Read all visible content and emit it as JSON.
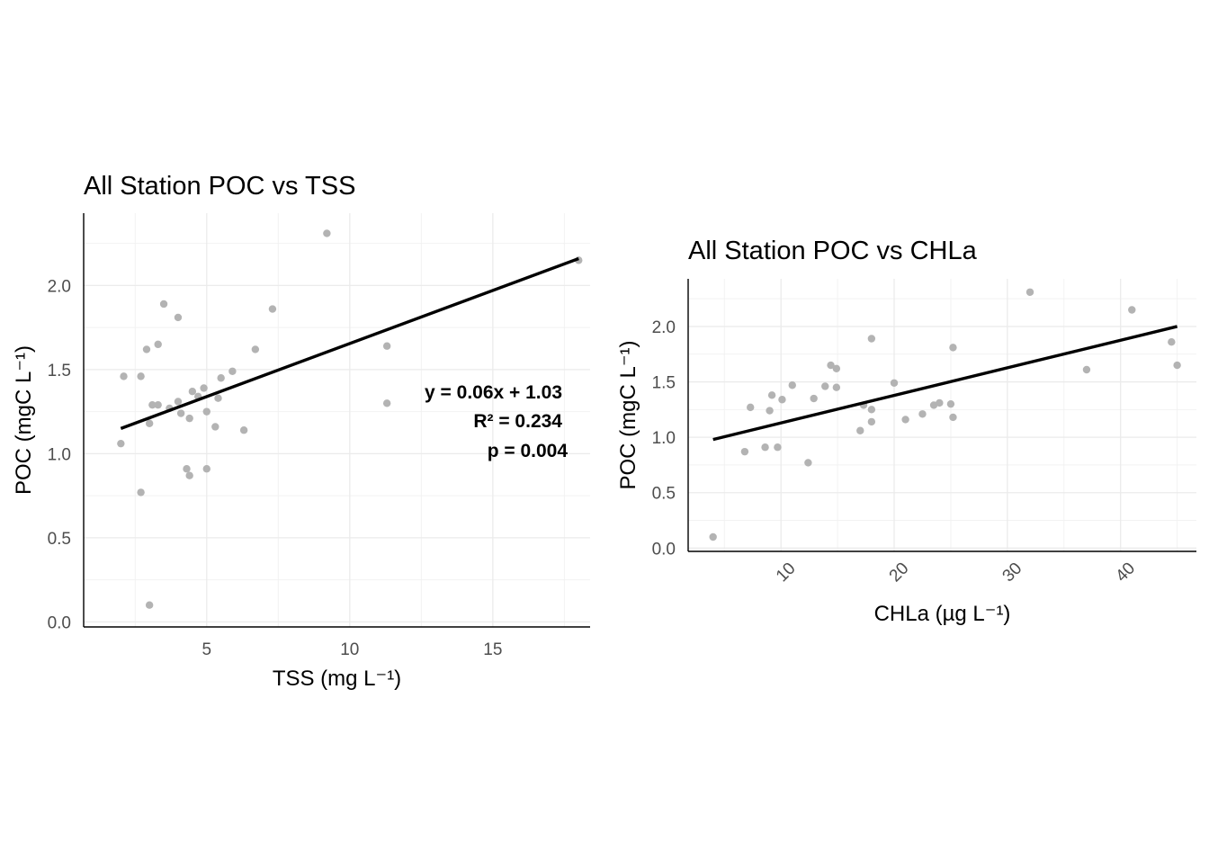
{
  "chart_data": [
    {
      "type": "scatter",
      "title": "All Station POC vs TSS",
      "xlabel": "TSS (mg L⁻¹)",
      "ylabel": "POC (mgC L⁻¹)",
      "xlim": [
        0.7,
        18.4
      ],
      "ylim": [
        -0.03,
        2.43
      ],
      "xticks": [
        5,
        10,
        15
      ],
      "yticks": [
        0.0,
        0.5,
        1.0,
        1.5,
        2.0
      ],
      "xtick_labels": [
        "5",
        "10",
        "15"
      ],
      "ytick_labels": [
        "0.0",
        "0.5",
        "1.0",
        "1.5",
        "2.0"
      ],
      "grid": true,
      "point_color": "#b3b3b3",
      "line_color": "#000000",
      "points": [
        {
          "x": 2.0,
          "y": 1.06
        },
        {
          "x": 2.1,
          "y": 1.46
        },
        {
          "x": 2.7,
          "y": 0.77
        },
        {
          "x": 2.7,
          "y": 1.46
        },
        {
          "x": 2.9,
          "y": 1.62
        },
        {
          "x": 3.0,
          "y": 1.18
        },
        {
          "x": 3.0,
          "y": 0.1
        },
        {
          "x": 3.1,
          "y": 1.29
        },
        {
          "x": 3.3,
          "y": 1.65
        },
        {
          "x": 3.3,
          "y": 1.29
        },
        {
          "x": 3.5,
          "y": 1.89
        },
        {
          "x": 3.7,
          "y": 1.27
        },
        {
          "x": 4.0,
          "y": 1.81
        },
        {
          "x": 4.0,
          "y": 1.31
        },
        {
          "x": 4.1,
          "y": 1.24
        },
        {
          "x": 4.3,
          "y": 0.91
        },
        {
          "x": 4.4,
          "y": 0.87
        },
        {
          "x": 4.4,
          "y": 1.21
        },
        {
          "x": 4.5,
          "y": 1.37
        },
        {
          "x": 4.7,
          "y": 1.34
        },
        {
          "x": 4.9,
          "y": 1.39
        },
        {
          "x": 5.0,
          "y": 1.25
        },
        {
          "x": 5.0,
          "y": 0.91
        },
        {
          "x": 5.3,
          "y": 1.16
        },
        {
          "x": 5.4,
          "y": 1.33
        },
        {
          "x": 5.5,
          "y": 1.45
        },
        {
          "x": 5.9,
          "y": 1.49
        },
        {
          "x": 6.3,
          "y": 1.14
        },
        {
          "x": 6.7,
          "y": 1.62
        },
        {
          "x": 7.3,
          "y": 1.86
        },
        {
          "x": 9.2,
          "y": 2.31
        },
        {
          "x": 11.3,
          "y": 1.64
        },
        {
          "x": 11.3,
          "y": 1.3
        },
        {
          "x": 18.0,
          "y": 2.15
        }
      ],
      "fit_line": {
        "x": [
          2.0,
          18.0
        ],
        "y": [
          1.15,
          2.16
        ]
      },
      "annotations": [
        "y = 0.06x + 1.03",
        "R² = 0.234",
        "p = 0.004"
      ]
    },
    {
      "type": "scatter",
      "title": "All Station POC vs CHLa",
      "xlabel": "CHLa (µg L⁻¹)",
      "ylabel": "POC (mgC L⁻¹)",
      "xlim": [
        1.8,
        46.7
      ],
      "ylim": [
        -0.03,
        2.43
      ],
      "xticks": [
        10,
        20,
        30,
        40
      ],
      "yticks": [
        0.0,
        0.5,
        1.0,
        1.5,
        2.0
      ],
      "xtick_labels": [
        "10",
        "20",
        "30",
        "40"
      ],
      "ytick_labels": [
        "0.0",
        "0.5",
        "1.0",
        "1.5",
        "2.0"
      ],
      "xtick_rotation": -45,
      "grid": true,
      "point_color": "#b3b3b3",
      "line_color": "#000000",
      "points": [
        {
          "x": 4.0,
          "y": 0.1
        },
        {
          "x": 6.8,
          "y": 0.87
        },
        {
          "x": 7.3,
          "y": 1.27
        },
        {
          "x": 8.6,
          "y": 0.91
        },
        {
          "x": 9.0,
          "y": 1.24
        },
        {
          "x": 9.2,
          "y": 1.38
        },
        {
          "x": 9.7,
          "y": 0.91
        },
        {
          "x": 10.1,
          "y": 1.34
        },
        {
          "x": 11.0,
          "y": 1.47
        },
        {
          "x": 12.4,
          "y": 0.77
        },
        {
          "x": 12.9,
          "y": 1.35
        },
        {
          "x": 13.9,
          "y": 1.46
        },
        {
          "x": 14.4,
          "y": 1.65
        },
        {
          "x": 14.9,
          "y": 1.62
        },
        {
          "x": 14.9,
          "y": 1.45
        },
        {
          "x": 17.0,
          "y": 1.06
        },
        {
          "x": 17.3,
          "y": 1.29
        },
        {
          "x": 18.0,
          "y": 1.89
        },
        {
          "x": 18.0,
          "y": 1.25
        },
        {
          "x": 18.0,
          "y": 1.14
        },
        {
          "x": 20.0,
          "y": 1.49
        },
        {
          "x": 21.0,
          "y": 1.16
        },
        {
          "x": 22.5,
          "y": 1.21
        },
        {
          "x": 23.5,
          "y": 1.29
        },
        {
          "x": 24.0,
          "y": 1.31
        },
        {
          "x": 25.0,
          "y": 1.3
        },
        {
          "x": 25.2,
          "y": 1.18
        },
        {
          "x": 25.2,
          "y": 1.81
        },
        {
          "x": 32.0,
          "y": 2.31
        },
        {
          "x": 37.0,
          "y": 1.61
        },
        {
          "x": 41.0,
          "y": 2.15
        },
        {
          "x": 44.5,
          "y": 1.86
        },
        {
          "x": 45.0,
          "y": 1.65
        }
      ],
      "fit_line": {
        "x": [
          4.0,
          45.0
        ],
        "y": [
          0.98,
          2.0
        ]
      }
    }
  ]
}
